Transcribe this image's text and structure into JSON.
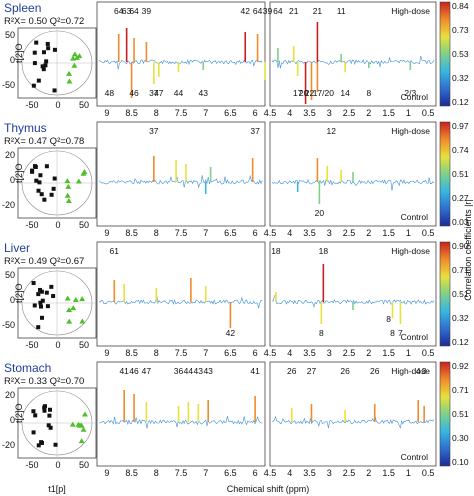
{
  "chart_data": {
    "type": "composite",
    "colorbar": {
      "label": "Correlation coefficients |r|",
      "colors": [
        "#1c2b95",
        "#2f6fd0",
        "#38b6e0",
        "#7fd08a",
        "#e8e13a",
        "#f08a2c",
        "#c8201e"
      ]
    },
    "shared": {
      "pca_xticks": [
        "-50",
        "0",
        "50"
      ],
      "pca_xlabel": "t1[p]",
      "pca_ylabel": "t[2]O",
      "nmr_left_ticks": [
        "9",
        "8.5",
        "8",
        "7.5",
        "7",
        "6.5",
        "6"
      ],
      "nmr_right_ticks": [
        "4.5",
        "4",
        "3.5",
        "3",
        "2.5",
        "2",
        "1.5",
        "1",
        "0.5"
      ],
      "nmr_xlabel": "Chemical shift (ppm)",
      "high_label": "High-dose",
      "low_label": "Control"
    },
    "panels": [
      {
        "organ": "Spleen",
        "stats": "R²X= 0.50 Q²=0.72",
        "pca_yticks": [
          "50",
          "0",
          "-50"
        ],
        "cb_ticks": [
          "0.84",
          "0.73",
          "0.53",
          "0.32",
          "0.12"
        ],
        "left_ann": [
          [
            "64",
            8.76,
            -1
          ],
          [
            "63",
            8.6,
            -1
          ],
          [
            "64",
            8.45,
            -1
          ],
          [
            "39",
            8.2,
            -1
          ],
          [
            "48",
            8.95,
            1
          ],
          [
            "46",
            8.45,
            1
          ],
          [
            "37",
            8.05,
            1
          ],
          [
            "47",
            7.95,
            1
          ],
          [
            "44",
            7.55,
            1
          ],
          [
            "43",
            7.05,
            1
          ],
          [
            "42",
            6.2,
            -1
          ],
          [
            "64",
            5.95,
            -1
          ],
          [
            "39",
            5.75,
            -1
          ]
        ],
        "right_ann": [
          [
            "64",
            4.3,
            -1
          ],
          [
            "21",
            3.9,
            -1
          ],
          [
            "21",
            3.3,
            -1
          ],
          [
            "11",
            2.7,
            -1
          ],
          [
            "17",
            3.8,
            1
          ],
          [
            "20",
            3.65,
            1
          ],
          [
            "22",
            3.5,
            1
          ],
          [
            "17/20",
            3.15,
            1
          ],
          [
            "14",
            2.6,
            1
          ],
          [
            "8",
            2.0,
            1
          ],
          [
            "2/3",
            0.95,
            1
          ]
        ],
        "left_peaks": [
          [
            8.76,
            28,
            0.9
          ],
          [
            8.6,
            34,
            0.95
          ],
          [
            8.45,
            24,
            0.8
          ],
          [
            8.2,
            20,
            0.85
          ],
          [
            8.5,
            -36,
            0.9
          ],
          [
            8.05,
            -22,
            0.7
          ],
          [
            7.95,
            -15,
            0.6
          ],
          [
            7.55,
            -10,
            0.6
          ],
          [
            7.05,
            -8,
            0.5
          ],
          [
            6.2,
            30,
            0.92
          ],
          [
            5.95,
            28,
            0.85
          ],
          [
            5.8,
            -18,
            0.7
          ]
        ],
        "right_peaks": [
          [
            4.3,
            14,
            0.5
          ],
          [
            3.9,
            16,
            0.7
          ],
          [
            3.3,
            40,
            0.95
          ],
          [
            3.6,
            -42,
            0.95
          ],
          [
            3.45,
            -38,
            0.9
          ],
          [
            3.3,
            -30,
            0.85
          ],
          [
            3.8,
            -14,
            0.6
          ],
          [
            2.6,
            -10,
            0.6
          ],
          [
            2.7,
            8,
            0.5
          ],
          [
            2.0,
            -6,
            0.5
          ],
          [
            0.95,
            -8,
            0.5
          ]
        ]
      },
      {
        "organ": "Thymus",
        "stats": "R²X= 0.47 Q²=0.78",
        "pca_yticks": [
          "20",
          "0",
          "-20"
        ],
        "cb_ticks": [
          "0.97",
          "0.74",
          "0.51",
          "0.27",
          "0.03"
        ],
        "left_ann": [
          [
            "37",
            8.05,
            -1
          ],
          [
            "37",
            6.0,
            -1
          ]
        ],
        "right_ann": [
          [
            "12",
            2.95,
            -1
          ],
          [
            "20",
            3.25,
            1
          ]
        ],
        "left_peaks": [
          [
            8.05,
            26,
            0.9
          ],
          [
            7.6,
            22,
            0.7
          ],
          [
            7.4,
            18,
            0.6
          ],
          [
            6.9,
            15,
            0.5
          ],
          [
            6.05,
            24,
            0.85
          ],
          [
            7.0,
            -12,
            0.4
          ]
        ],
        "right_peaks": [
          [
            3.3,
            24,
            0.8
          ],
          [
            3.05,
            16,
            0.6
          ],
          [
            2.7,
            12,
            0.6
          ],
          [
            2.4,
            10,
            0.5
          ],
          [
            3.25,
            -22,
            0.5
          ],
          [
            3.8,
            -10,
            0.4
          ]
        ]
      },
      {
        "organ": "Liver",
        "stats": "R²X= 0.49 Q²=0.67",
        "pca_yticks": [
          "50",
          "0",
          "-50"
        ],
        "cb_ticks": [
          "0.90",
          "0.71",
          "0.51",
          "0.32",
          "0.12"
        ],
        "left_ann": [
          [
            "61",
            8.85,
            -1
          ],
          [
            "42",
            6.5,
            1
          ]
        ],
        "right_ann": [
          [
            "18",
            4.35,
            -1
          ],
          [
            "18",
            3.15,
            -1
          ],
          [
            "8",
            3.2,
            1
          ],
          [
            "8",
            1.4,
            1
          ],
          [
            "7",
            1.2,
            1
          ],
          [
            "8",
            1.5,
            0
          ]
        ],
        "left_peaks": [
          [
            8.85,
            22,
            0.8
          ],
          [
            8.65,
            18,
            0.7
          ],
          [
            8.0,
            14,
            0.6
          ],
          [
            7.3,
            24,
            0.85
          ],
          [
            7.0,
            16,
            0.6
          ],
          [
            6.5,
            -26,
            0.8
          ]
        ],
        "right_peaks": [
          [
            4.35,
            10,
            0.6
          ],
          [
            3.15,
            38,
            0.95
          ],
          [
            3.2,
            -22,
            0.7
          ],
          [
            1.4,
            -16,
            0.6
          ],
          [
            1.2,
            -22,
            0.7
          ],
          [
            2.4,
            -8,
            0.5
          ]
        ]
      },
      {
        "organ": "Stomach",
        "stats": "R²X= 0.33 Q²=0.70",
        "pca_yticks": [
          "20",
          "0",
          "-20"
        ],
        "cb_ticks": [
          "0.92",
          "0.71",
          "0.51",
          "0.30",
          "0.10"
        ],
        "left_ann": [
          [
            "41",
            8.65,
            -1
          ],
          [
            "46",
            8.45,
            -1
          ],
          [
            "47",
            8.2,
            -1
          ],
          [
            "36",
            7.55,
            -1
          ],
          [
            "44",
            7.35,
            -1
          ],
          [
            "43",
            7.15,
            -1
          ],
          [
            "43",
            6.95,
            -1
          ],
          [
            "41",
            6.0,
            -1
          ]
        ],
        "right_ann": [
          [
            "26",
            3.95,
            -1
          ],
          [
            "27",
            3.45,
            -1
          ],
          [
            "26",
            2.6,
            -1
          ],
          [
            "26",
            1.85,
            -1
          ],
          [
            "4",
            0.75,
            -1
          ],
          [
            "3",
            0.6,
            -1
          ]
        ],
        "left_peaks": [
          [
            8.65,
            32,
            0.9
          ],
          [
            8.45,
            28,
            0.85
          ],
          [
            8.2,
            20,
            0.7
          ],
          [
            7.55,
            16,
            0.6
          ],
          [
            7.35,
            20,
            0.7
          ],
          [
            7.15,
            18,
            0.7
          ],
          [
            6.95,
            22,
            0.8
          ],
          [
            6.0,
            26,
            0.85
          ]
        ],
        "right_peaks": [
          [
            3.95,
            14,
            0.7
          ],
          [
            3.45,
            18,
            0.75
          ],
          [
            2.6,
            12,
            0.6
          ],
          [
            1.85,
            18,
            0.8
          ],
          [
            0.75,
            22,
            0.85
          ],
          [
            0.6,
            16,
            0.75
          ]
        ]
      }
    ]
  }
}
